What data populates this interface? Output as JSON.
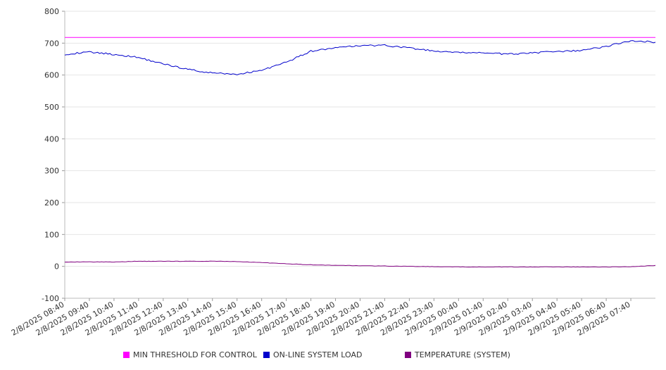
{
  "chart_data": {
    "type": "line",
    "title": "",
    "xlabel": "",
    "ylabel": "",
    "ylim": [
      -100,
      800
    ],
    "yticks": [
      -100,
      0,
      100,
      200,
      300,
      400,
      500,
      600,
      700,
      800
    ],
    "grid": true,
    "legend_position": "bottom",
    "x_start": "2/8/2025 08:40",
    "x_end": "2/9/2025 08:40",
    "x_ticks": [
      "2/8/2025 08:40",
      "2/8/2025 09:40",
      "2/8/2025 10:40",
      "2/8/2025 11:40",
      "2/8/2025 12:40",
      "2/8/2025 13:40",
      "2/8/2025 14:40",
      "2/8/2025 15:40",
      "2/8/2025 16:40",
      "2/8/2025 17:40",
      "2/8/2025 18:40",
      "2/8/2025 19:40",
      "2/8/2025 20:40",
      "2/8/2025 21:40",
      "2/8/2025 22:40",
      "2/8/2025 23:40",
      "2/9/2025 00:40",
      "2/9/2025 01:40",
      "2/9/2025 02:40",
      "2/9/2025 03:40",
      "2/9/2025 04:40",
      "2/9/2025 05:40",
      "2/9/2025 06:40",
      "2/9/2025 07:40"
    ],
    "x": [
      "2/8/2025 08:40",
      "2/8/2025 09:40",
      "2/8/2025 10:40",
      "2/8/2025 11:40",
      "2/8/2025 12:40",
      "2/8/2025 13:40",
      "2/8/2025 14:40",
      "2/8/2025 15:40",
      "2/8/2025 16:40",
      "2/8/2025 17:40",
      "2/8/2025 18:40",
      "2/8/2025 19:40",
      "2/8/2025 20:40",
      "2/8/2025 21:40",
      "2/8/2025 22:40",
      "2/8/2025 23:40",
      "2/9/2025 00:40",
      "2/9/2025 01:40",
      "2/9/2025 02:40",
      "2/9/2025 03:40",
      "2/9/2025 04:40",
      "2/9/2025 05:40",
      "2/9/2025 06:40",
      "2/9/2025 07:40",
      "2/9/2025 08:40"
    ],
    "series": [
      {
        "name": "MIN THRESHOLD FOR CONTROL",
        "color": "#ff00ff",
        "values": [
          718,
          718,
          718,
          718,
          718,
          718,
          718,
          718,
          718,
          718,
          718,
          718,
          718,
          718,
          718,
          718,
          718,
          718,
          718,
          718,
          718,
          718,
          718,
          718,
          718
        ]
      },
      {
        "name": "ON-LINE SYSTEM LOAD",
        "color": "#0000cc",
        "values": [
          665,
          672,
          665,
          655,
          635,
          618,
          606,
          602,
          615,
          640,
          675,
          685,
          692,
          693,
          685,
          675,
          670,
          670,
          665,
          670,
          673,
          677,
          690,
          708,
          703
        ]
      },
      {
        "name": "TEMPERATURE (SYSTEM)",
        "color": "#800080",
        "values": [
          14,
          14,
          14,
          16,
          16,
          16,
          16,
          15,
          12,
          8,
          5,
          3,
          2,
          1,
          0,
          -1,
          -2,
          -2,
          -2,
          -2,
          -2,
          -2,
          -2,
          -1,
          3
        ]
      }
    ]
  }
}
